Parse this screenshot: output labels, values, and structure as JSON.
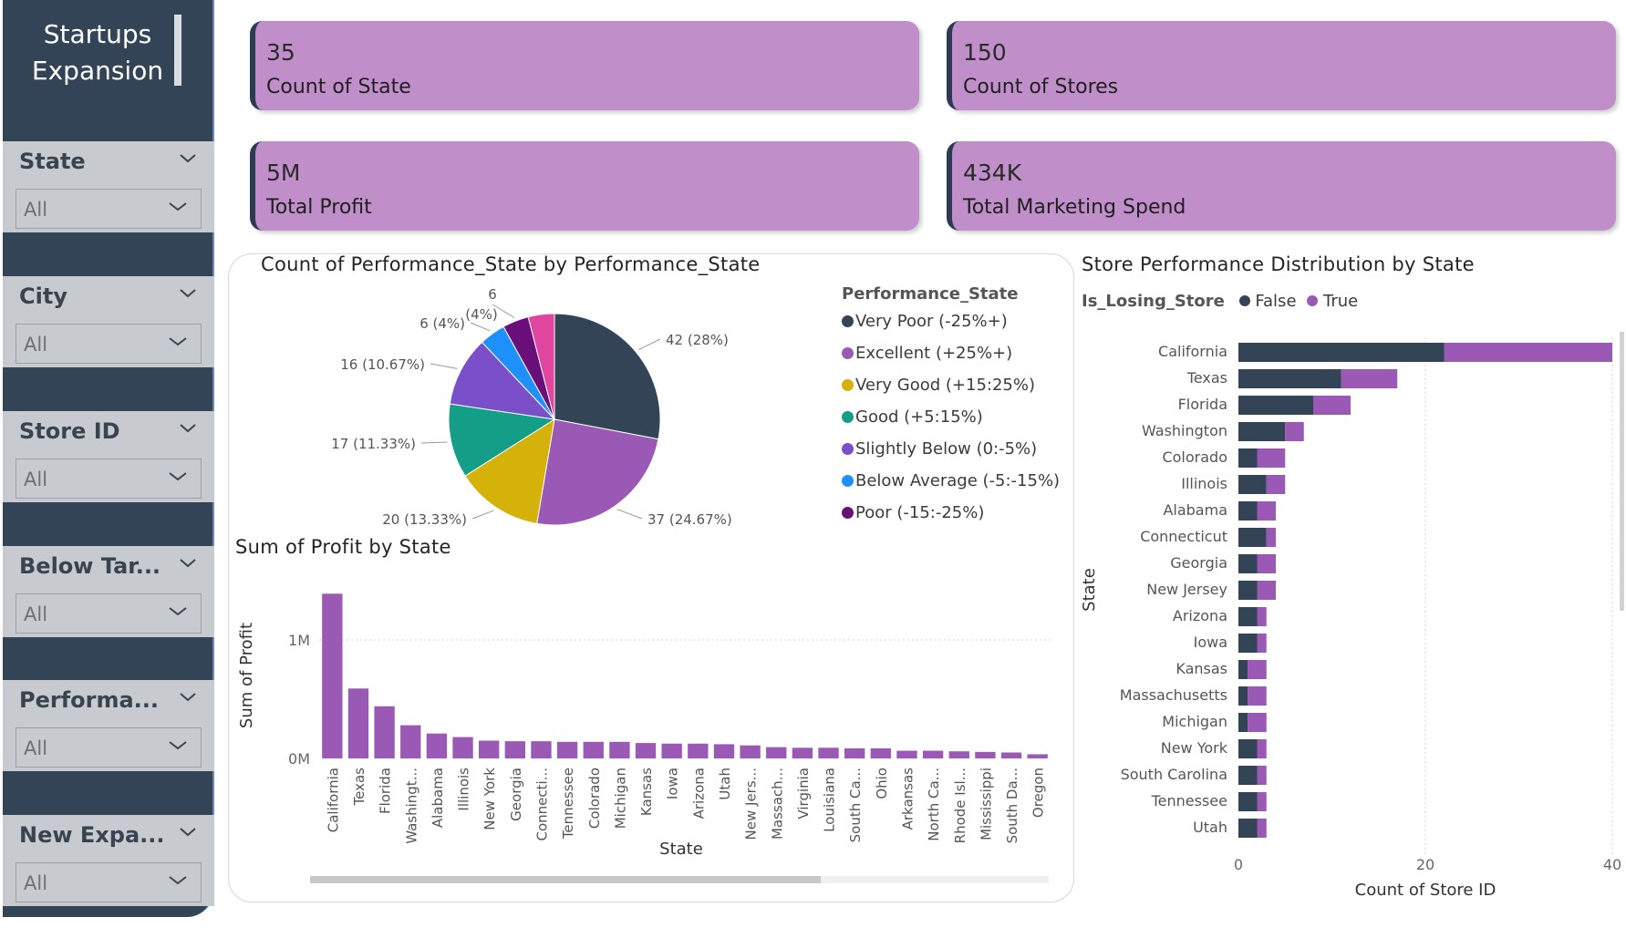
{
  "sidebar": {
    "title": "Startups Expansion",
    "slicers": [
      {
        "label": "State",
        "value": "All"
      },
      {
        "label": "City",
        "value": "All"
      },
      {
        "label": "Store ID",
        "value": "All"
      },
      {
        "label": "Below Tar...",
        "value": "All"
      },
      {
        "label": "Performa...",
        "value": "All"
      },
      {
        "label": "New Expa...",
        "value": "All"
      }
    ]
  },
  "kpis": [
    {
      "value": "35",
      "label": "Count of State"
    },
    {
      "value": "150",
      "label": "Count of Stores"
    },
    {
      "value": "5M",
      "label": "Total Profit"
    },
    {
      "value": "434K",
      "label": "Total Marketing Spend"
    }
  ],
  "colors": {
    "sidebar": "#334457",
    "kpi": "#c08fc9",
    "dark": "#334457",
    "purple": "#9b59b6"
  },
  "chart_data": [
    {
      "type": "pie",
      "title": "Count of Performance_State by Performance_State",
      "legend_title": "Performance_State",
      "slices": [
        {
          "name": "Very Poor (-25%+)",
          "value": 42,
          "label": "42 (28%)",
          "color": "#334457"
        },
        {
          "name": "Excellent (+25%+)",
          "value": 37,
          "label": "37 (24.67%)",
          "color": "#9b59b6"
        },
        {
          "name": "Very Good (+15:25%)",
          "value": 20,
          "label": "20 (13.33%)",
          "color": "#d4b20a"
        },
        {
          "name": "Good (+5:15%)",
          "value": 17,
          "label": "17 (11.33%)",
          "color": "#149e87"
        },
        {
          "name": "Slightly Below (0:-5%)",
          "value": 16,
          "label": "16 (10.67%)",
          "color": "#7a4fc9"
        },
        {
          "name": "Below Average (-5:-15%)",
          "value": 6,
          "label": "6 (4%)",
          "color": "#1e90ff"
        },
        {
          "name": "Poor (-15:-25%)",
          "value": 6,
          "label": "6",
          "label2": "(4%)",
          "color": "#6a0f7a"
        },
        {
          "name": "",
          "value": 6,
          "label": "",
          "color": "#e0459f"
        }
      ]
    },
    {
      "type": "bar",
      "title": "Sum of Profit by State",
      "xlabel": "State",
      "ylabel": "Sum of Profit",
      "ytick_labels": [
        "1M",
        "0M"
      ],
      "yticks": [
        1000000,
        0
      ],
      "ylim": [
        0,
        1400000
      ],
      "categories": [
        "California",
        "Texas",
        "Florida",
        "Washingt...",
        "Alabama",
        "Illinois",
        "New York",
        "Georgia",
        "Connecti...",
        "Tennessee",
        "Colorado",
        "Michigan",
        "Kansas",
        "Iowa",
        "Arizona",
        "Utah",
        "New Jers...",
        "Massach...",
        "Virginia",
        "Louisiana",
        "South Ca...",
        "Ohio",
        "Arkansas",
        "North Ca...",
        "Rhode Isl...",
        "Mississippi",
        "South Da...",
        "Oregon"
      ],
      "values": [
        1390000,
        590000,
        440000,
        280000,
        210000,
        180000,
        150000,
        145000,
        145000,
        140000,
        140000,
        140000,
        130000,
        125000,
        125000,
        120000,
        110000,
        95000,
        90000,
        90000,
        85000,
        85000,
        65000,
        65000,
        60000,
        55000,
        50000,
        35000
      ],
      "color": "#9b59b6"
    },
    {
      "type": "bar",
      "orientation": "horizontal",
      "stacked": true,
      "title": "Store Performance Distribution by State",
      "legend_title": "Is_Losing_Store",
      "xlabel": "Count of Store ID",
      "ylabel": "State",
      "xlim": [
        0,
        40
      ],
      "xtick_labels": [
        "0",
        "20",
        "40"
      ],
      "xticks": [
        0,
        20,
        40
      ],
      "categories": [
        "California",
        "Texas",
        "Florida",
        "Washington",
        "Colorado",
        "Illinois",
        "Alabama",
        "Connecticut",
        "Georgia",
        "New Jersey",
        "Arizona",
        "Iowa",
        "Kansas",
        "Massachusetts",
        "Michigan",
        "New York",
        "South Carolina",
        "Tennessee",
        "Utah"
      ],
      "series": [
        {
          "name": "False",
          "color": "#334457",
          "values": [
            22,
            11,
            8,
            5,
            2,
            3,
            2,
            3,
            2,
            2,
            2,
            2,
            1,
            1,
            1,
            2,
            2,
            2,
            2
          ]
        },
        {
          "name": "True",
          "color": "#9b59b6",
          "values": [
            18,
            6,
            4,
            2,
            3,
            2,
            2,
            1,
            2,
            2,
            1,
            1,
            2,
            2,
            2,
            1,
            1,
            1,
            1
          ]
        }
      ]
    }
  ]
}
